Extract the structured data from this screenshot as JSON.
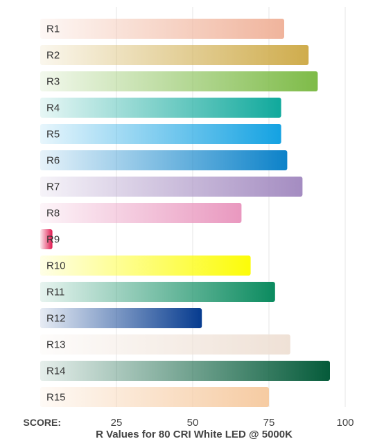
{
  "chart_data": {
    "type": "bar",
    "orientation": "horizontal",
    "title": "R Values for 80 CRI White LED @ 5000K",
    "xaxis_prefix": "SCORE:",
    "xlim": [
      0,
      100
    ],
    "xticks": [
      25,
      50,
      75,
      100
    ],
    "grid": true,
    "categories": [
      "R1",
      "R2",
      "R3",
      "R4",
      "R5",
      "R6",
      "R7",
      "R8",
      "R9",
      "R10",
      "R11",
      "R12",
      "R13",
      "R14",
      "R15"
    ],
    "values": [
      80,
      88,
      91,
      79,
      79,
      81,
      86,
      66,
      4,
      69,
      77,
      53,
      82,
      95,
      75
    ],
    "colors": [
      "#f0b49c",
      "#cfac4c",
      "#7ebb48",
      "#10a99c",
      "#14a2e2",
      "#0c82c9",
      "#a48cc1",
      "#e998bf",
      "#e01a50",
      "#fcfc08",
      "#0b8b5f",
      "#063b8f",
      "#efe1d6",
      "#055b3a",
      "#f6cba2"
    ]
  }
}
